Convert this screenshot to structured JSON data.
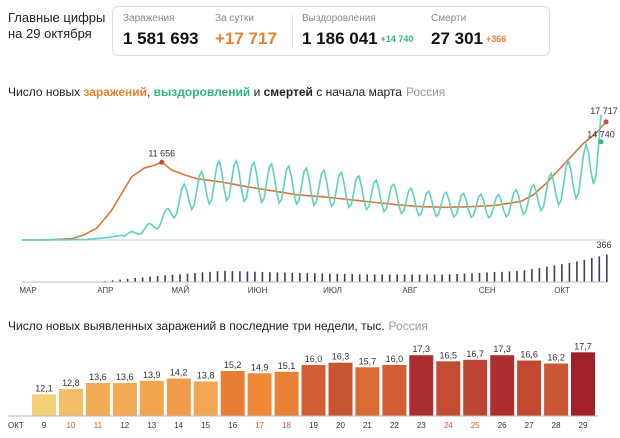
{
  "header": {
    "title_line1": "Главные цифры",
    "title_line2": "на 29 октября"
  },
  "stats": {
    "infections": {
      "label": "Заражения",
      "value": "1 581 693"
    },
    "daily": {
      "label": "За сутки",
      "value": "+17 717"
    },
    "recoveries": {
      "label": "Выздоровления",
      "value": "1 186 041",
      "delta": "+14 740"
    },
    "deaths": {
      "label": "Смерти",
      "value": "27 301",
      "delta": "+366"
    }
  },
  "chart1": {
    "title_prefix": "Число новых ",
    "title_inf": "заражений",
    "title_sep": ", ",
    "title_rec": "выздоровлений",
    "title_and": " и ",
    "title_deaths": "смертей",
    "title_suffix": " с начала марта",
    "region": "Россия",
    "annotations": {
      "peak": "11 656",
      "last_inf": "17 717",
      "last_rec": "14 740",
      "last_deaths": "366"
    }
  },
  "chart2": {
    "title": "Число новых выявленных заражений в последние три недели, тыс.",
    "region": "Россия",
    "month_label": "ОКТ"
  },
  "colors": {
    "infections": "#d9773a",
    "recoveries": "#5fd1c0",
    "deaths": "#3a3f5c",
    "weekend": "#e8532b"
  },
  "chart_data": [
    {
      "type": "line",
      "title": "Число новых заражений, выздоровлений и смертей с начала марта",
      "x_ticks": [
        "МАР",
        "АПР",
        "МАЙ",
        "ИЮН",
        "ИЮЛ",
        "АВГ",
        "СЕН",
        "ОКТ"
      ],
      "series": [
        {
          "name": "заражений",
          "points": [
            [
              0,
              0
            ],
            [
              10,
              10
            ],
            [
              20,
              200
            ],
            [
              25,
              800
            ],
            [
              30,
              1800
            ],
            [
              36,
              4500
            ],
            [
              40,
              7000
            ],
            [
              44,
              9500
            ],
            [
              49,
              10800
            ],
            [
              53,
              11200
            ],
            [
              56,
              11656
            ],
            [
              60,
              10500
            ],
            [
              65,
              9800
            ],
            [
              70,
              9200
            ],
            [
              80,
              8700
            ],
            [
              90,
              8000
            ],
            [
              100,
              7400
            ],
            [
              110,
              6800
            ],
            [
              120,
              6500
            ],
            [
              130,
              6100
            ],
            [
              140,
              5700
            ],
            [
              150,
              5300
            ],
            [
              160,
              5000
            ],
            [
              170,
              4900
            ],
            [
              180,
              5000
            ],
            [
              190,
              5200
            ],
            [
              200,
              5800
            ],
            [
              205,
              6800
            ],
            [
              210,
              8500
            ],
            [
              215,
              10500
            ],
            [
              220,
              12500
            ],
            [
              225,
              14500
            ],
            [
              230,
              16000
            ],
            [
              234,
              17717
            ]
          ]
        },
        {
          "name": "выздоровлений",
          "points": [
            [
              0,
              0
            ],
            [
              25,
              50
            ],
            [
              35,
              400
            ],
            [
              45,
              1000
            ],
            [
              52,
              2000
            ],
            [
              58,
              3500
            ],
            [
              62,
              5500
            ],
            [
              68,
              7000
            ],
            [
              80,
              9000
            ],
            [
              100,
              8500
            ],
            [
              130,
              7500
            ],
            [
              160,
              5500
            ],
            [
              190,
              5000
            ],
            [
              205,
              6200
            ],
            [
              215,
              8000
            ],
            [
              225,
              10000
            ],
            [
              232,
              14740
            ]
          ]
        },
        {
          "name": "смертей",
          "points": [
            [
              0,
              0
            ],
            [
              30,
              2
            ],
            [
              50,
              70
            ],
            [
              80,
              150
            ],
            [
              110,
              120
            ],
            [
              140,
              100
            ],
            [
              170,
              100
            ],
            [
              200,
              150
            ],
            [
              220,
              260
            ],
            [
              234,
              366
            ]
          ]
        }
      ]
    },
    {
      "type": "bar",
      "title": "Число новых выявленных заражений в последние три недели, тыс.",
      "categories": [
        "9",
        "10",
        "11",
        "12",
        "13",
        "14",
        "15",
        "16",
        "17",
        "18",
        "19",
        "20",
        "21",
        "22",
        "23",
        "24",
        "25",
        "26",
        "27",
        "28",
        "29"
      ],
      "values": [
        12.1,
        12.8,
        13.6,
        13.6,
        13.9,
        14.2,
        13.8,
        15.2,
        14.9,
        15.1,
        16.0,
        16.3,
        15.7,
        16.0,
        17.3,
        16.5,
        16.7,
        17.3,
        16.6,
        16.2,
        17.7
      ],
      "value_labels": [
        "12,1",
        "12,8",
        "13,6",
        "13,6",
        "13,9",
        "14,2",
        "13,8",
        "15,2",
        "14,9",
        "15,1",
        "16,0",
        "16,3",
        "15,7",
        "16,0",
        "17,3",
        "16,5",
        "16,7",
        "17,3",
        "16,6",
        "16,2",
        "17,7"
      ],
      "weekend_categories": [
        "10",
        "11",
        "17",
        "18",
        "24",
        "25"
      ]
    }
  ]
}
